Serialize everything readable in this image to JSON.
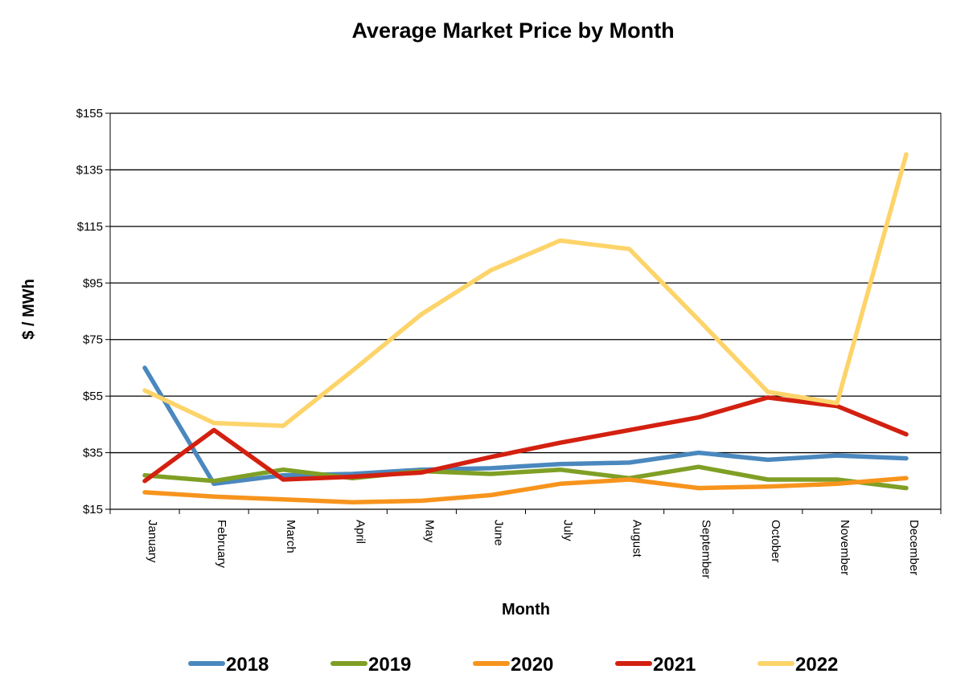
{
  "chart_data": {
    "type": "line",
    "title": "Average Market Price by Month",
    "xlabel": "Month",
    "ylabel": "$ / MWh",
    "categories": [
      "January",
      "February",
      "March",
      "April",
      "May",
      "June",
      "July",
      "August",
      "September",
      "October",
      "November",
      "December"
    ],
    "ylim": [
      15,
      155
    ],
    "yticks": [
      15,
      35,
      55,
      75,
      95,
      115,
      135,
      155
    ],
    "ytick_labels": [
      "$15",
      "$35",
      "$55",
      "$75",
      "$95",
      "$115",
      "$135",
      "$155"
    ],
    "grid": "horizontal",
    "legend_position": "bottom",
    "series": [
      {
        "name": "2018",
        "color": "#4a88be",
        "values": [
          65,
          24,
          27,
          27.5,
          29,
          29.5,
          31,
          31.5,
          35,
          32.5,
          34,
          33
        ]
      },
      {
        "name": "2019",
        "color": "#7f9f25",
        "values": [
          27,
          25,
          29,
          26,
          28.5,
          27.5,
          29,
          26,
          30,
          25.5,
          25.5,
          22.5
        ]
      },
      {
        "name": "2020",
        "color": "#f7941d",
        "values": [
          21,
          19.5,
          18.5,
          17.5,
          18,
          20,
          24,
          25.5,
          22.5,
          23,
          24,
          26
        ]
      },
      {
        "name": "2021",
        "color": "#d32010",
        "values": [
          25,
          43,
          25.5,
          26.5,
          28,
          33.5,
          38.5,
          43,
          47.5,
          54.5,
          51.5,
          41.5
        ]
      },
      {
        "name": "2022",
        "color": "#fdd46a",
        "values": [
          57,
          45.5,
          44.5,
          64,
          84,
          99.5,
          110,
          107,
          82,
          56.5,
          52.5,
          140.5
        ]
      }
    ]
  }
}
